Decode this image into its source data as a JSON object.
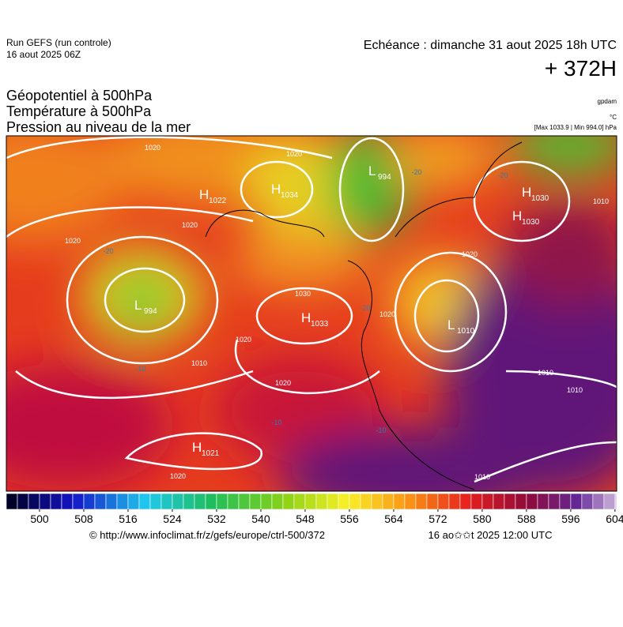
{
  "header": {
    "run": "Run GEFS (run controle)",
    "run_date": "16 aout 2025 06Z",
    "valid": "Echéance : dimanche 31 aout 2025 18h UTC",
    "lead": "+ 372H"
  },
  "fields": {
    "line1": "Géopotentiel à 500hPa",
    "line2": "Température à 500hPa",
    "line3": "Pression au niveau de la mer",
    "unit_geo": "gpdam",
    "unit_temp": "°C",
    "extremes": "[Max 1033.9 | Min 994.0] hPa"
  },
  "map": {
    "centers": [
      {
        "letter": "L",
        "value": "994"
      },
      {
        "letter": "H",
        "value": "1022"
      },
      {
        "letter": "H",
        "value": "1034"
      },
      {
        "letter": "H",
        "value": "1030"
      },
      {
        "letter": "H",
        "value": "1030"
      },
      {
        "letter": "L",
        "value": "994"
      },
      {
        "letter": "H",
        "value": "1033"
      },
      {
        "letter": "L",
        "value": "1010"
      },
      {
        "letter": "H",
        "value": "1021"
      }
    ],
    "isobar_labels": [
      "1020",
      "1020",
      "1020",
      "1020",
      "1030",
      "1020",
      "1010",
      "1020",
      "1020",
      "1010",
      "1010",
      "1010",
      "1020",
      "1020",
      "1010"
    ],
    "temp_labels": [
      "-20",
      "-20",
      "-20",
      "-20",
      "-10",
      "-10",
      "-10"
    ]
  },
  "colorbar": {
    "range": [
      494,
      604.3
    ],
    "step": 2,
    "ticks": [
      500,
      508,
      516,
      524,
      532,
      540,
      548,
      556,
      564,
      572,
      580,
      588,
      596,
      604
    ]
  },
  "footer": {
    "url": "© http://www.infoclimat.fr/z/gefs/europe/ctrl-500/372",
    "date": "16 ao✩✩t 2025 12:00 UTC"
  }
}
